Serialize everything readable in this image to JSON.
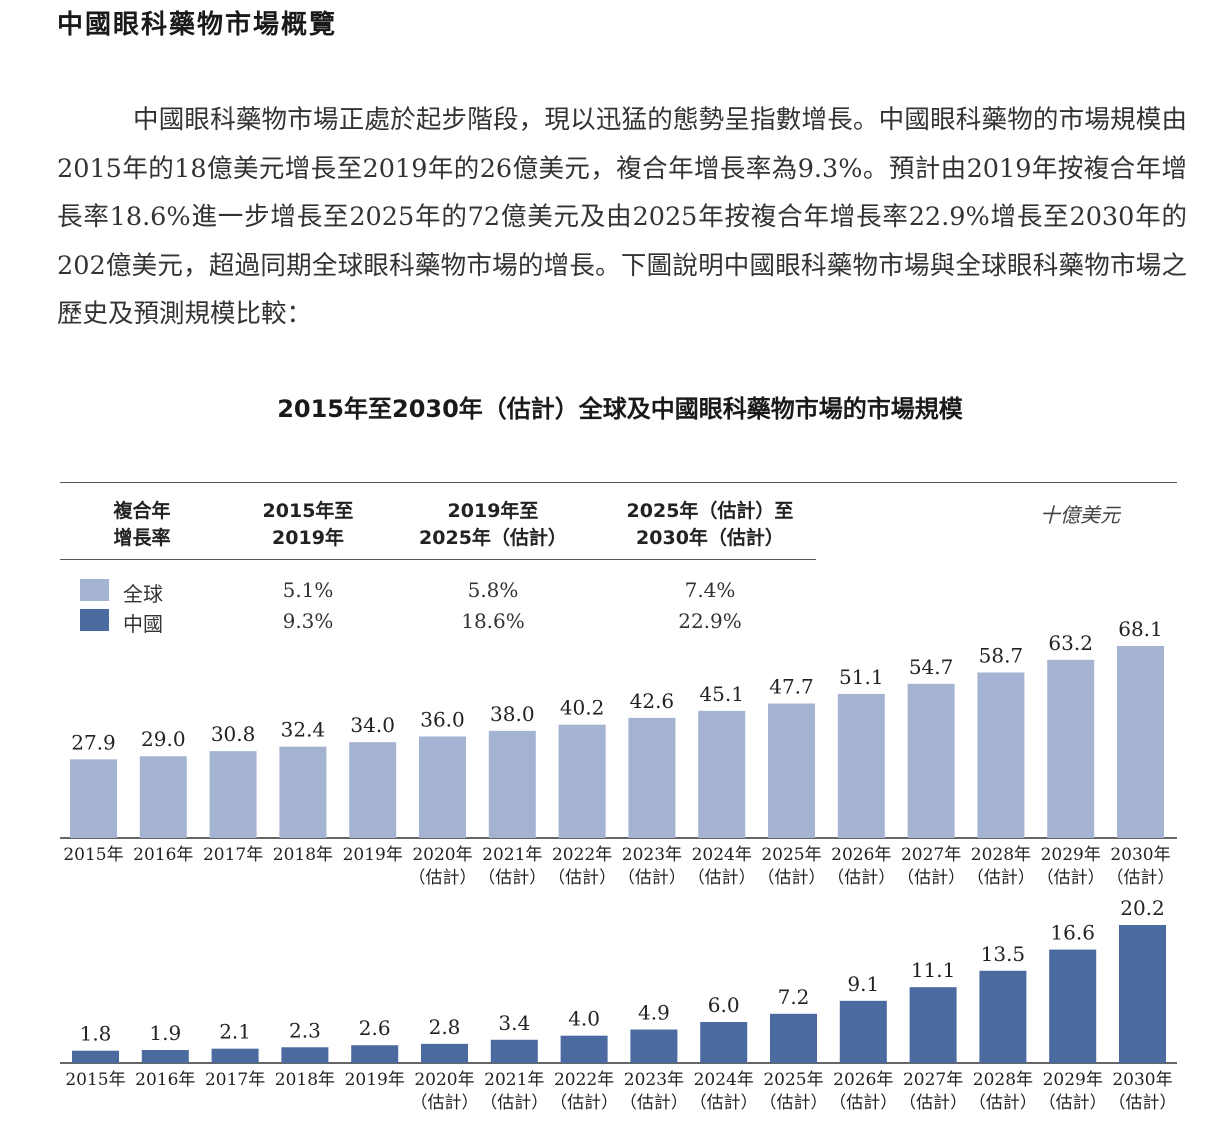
{
  "page": {
    "heading": "中國眼科藥物市場概覽",
    "paragraph": "中國眼科藥物市場正處於起步階段，現以迅猛的態勢呈指數增長。中國眼科藥物的市場規模由2015年的18億美元增長至2019年的26億美元，複合年增長率為9.3%。預計由2019年按複合年增長率18.6%進一步增長至2025年的72億美元及由2025年按複合年增長率22.9%增長至2030年的202億美元，超過同期全球眼科藥物市場的增長。下圖說明中國眼科藥物市場與全球眼科藥物市場之歷史及預測規模比較："
  },
  "chart_data": {
    "type": "bar",
    "title": "2015年至2030年（估計）全球及中國眼科藥物市場的市場規模",
    "unit": "十億美元",
    "categories": [
      "2015年",
      "2016年",
      "2017年",
      "2018年",
      "2019年",
      "2020年",
      "2021年",
      "2022年",
      "2023年",
      "2024年",
      "2025年",
      "2026年",
      "2027年",
      "2028年",
      "2029年",
      "2030年"
    ],
    "estimate_label": "（估計）",
    "estimate_from_index": 5,
    "series": [
      {
        "name": "全球",
        "color": "#a3b3d1",
        "values": [
          27.9,
          29.0,
          30.8,
          32.4,
          34.0,
          36.0,
          38.0,
          40.2,
          42.6,
          45.1,
          47.7,
          51.1,
          54.7,
          58.7,
          63.2,
          68.1
        ]
      },
      {
        "name": "中國",
        "color": "#4b6a9f",
        "values": [
          1.8,
          1.9,
          2.1,
          2.3,
          2.6,
          2.8,
          3.4,
          4.0,
          4.9,
          6.0,
          7.2,
          9.1,
          11.1,
          13.5,
          16.6,
          20.2
        ]
      }
    ],
    "legend_placement": "top-left",
    "grid": false,
    "cagr_table": {
      "header_label": [
        "複合年",
        "增長率"
      ],
      "columns": [
        {
          "label": [
            "2015年至",
            "2019年"
          ],
          "values": [
            "5.1%",
            "9.3%"
          ]
        },
        {
          "label": [
            "2019年至",
            "2025年（估計）"
          ],
          "values": [
            "5.8%",
            "18.6%"
          ]
        },
        {
          "label": [
            "2025年（估計）至",
            "2030年（估計）"
          ],
          "values": [
            "7.4%",
            "22.9%"
          ]
        }
      ]
    }
  }
}
